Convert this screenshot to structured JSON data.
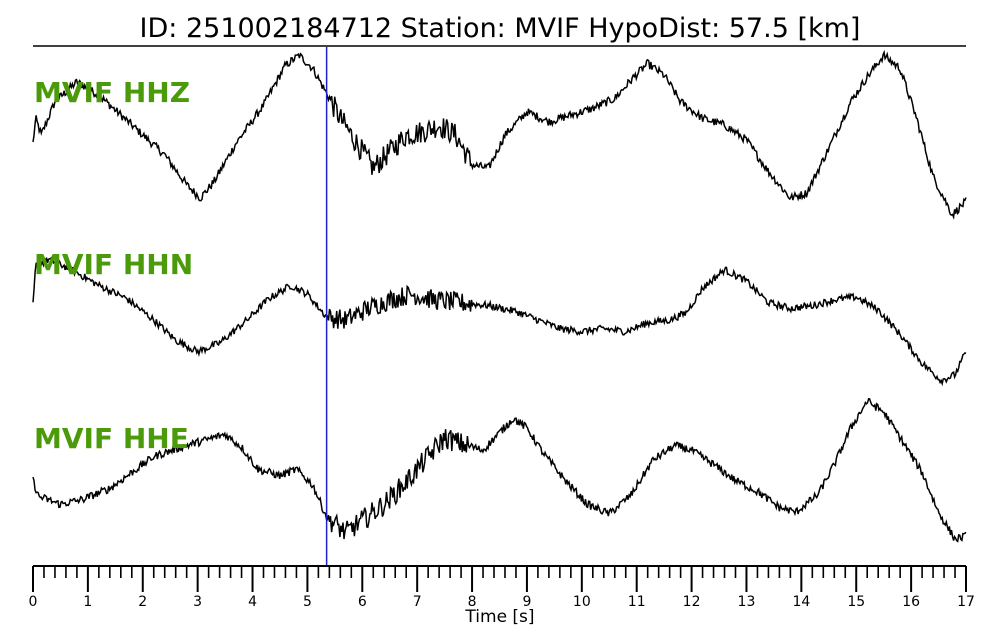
{
  "title": "ID: 251002184712   Station: MVIF   HypoDist:     57.5 [km]",
  "colors": {
    "label": "#4a9a0a",
    "pick": "#1f1fd0",
    "trace": "#000000"
  },
  "chart_data": {
    "type": "line",
    "xlabel": "Time [s]",
    "xlim": [
      0,
      17
    ],
    "x_major_ticks": [
      0,
      1,
      2,
      3,
      4,
      5,
      6,
      7,
      8,
      9,
      10,
      11,
      12,
      13,
      14,
      15,
      16,
      17
    ],
    "x_tick_labels": [
      "0",
      "1",
      "2",
      "3",
      "4",
      "5",
      "6",
      "7",
      "8",
      "9",
      "10",
      "11",
      "12",
      "13",
      "14",
      "15",
      "16",
      "17"
    ],
    "minor_tick_step": 0.2,
    "pick_time": 5.35,
    "grid": false,
    "series": [
      {
        "name": "MVIF HHZ",
        "points": [
          [
            0,
            0.45
          ],
          [
            0.05,
            0.6
          ],
          [
            0.15,
            0.5
          ],
          [
            0.4,
            0.7
          ],
          [
            0.8,
            0.82
          ],
          [
            1.2,
            0.74
          ],
          [
            1.6,
            0.62
          ],
          [
            2.0,
            0.5
          ],
          [
            2.4,
            0.38
          ],
          [
            2.8,
            0.2
          ],
          [
            3.05,
            0.12
          ],
          [
            3.3,
            0.22
          ],
          [
            3.7,
            0.45
          ],
          [
            4.2,
            0.68
          ],
          [
            4.6,
            0.92
          ],
          [
            4.85,
            0.98
          ],
          [
            5.1,
            0.9
          ],
          [
            5.35,
            0.75
          ],
          [
            5.6,
            0.6
          ],
          [
            5.9,
            0.45
          ],
          [
            6.2,
            0.3
          ],
          [
            6.5,
            0.4
          ],
          [
            6.8,
            0.5
          ],
          [
            7.1,
            0.52
          ],
          [
            7.4,
            0.56
          ],
          [
            7.7,
            0.5
          ],
          [
            8.0,
            0.32
          ],
          [
            8.3,
            0.3
          ],
          [
            8.6,
            0.5
          ],
          [
            9.0,
            0.64
          ],
          [
            9.4,
            0.58
          ],
          [
            9.8,
            0.62
          ],
          [
            10.2,
            0.66
          ],
          [
            10.6,
            0.72
          ],
          [
            10.95,
            0.85
          ],
          [
            11.2,
            0.93
          ],
          [
            11.5,
            0.86
          ],
          [
            11.8,
            0.7
          ],
          [
            12.2,
            0.6
          ],
          [
            12.6,
            0.56
          ],
          [
            13.0,
            0.47
          ],
          [
            13.4,
            0.28
          ],
          [
            13.8,
            0.12
          ],
          [
            14.1,
            0.15
          ],
          [
            14.5,
            0.42
          ],
          [
            14.9,
            0.7
          ],
          [
            15.2,
            0.85
          ],
          [
            15.5,
            0.98
          ],
          [
            15.8,
            0.9
          ],
          [
            16.1,
            0.6
          ],
          [
            16.4,
            0.25
          ],
          [
            16.75,
            0.02
          ],
          [
            17.0,
            0.1
          ]
        ]
      },
      {
        "name": "MVIF HHN",
        "points": [
          [
            0,
            0.6
          ],
          [
            0.05,
            0.88
          ],
          [
            0.3,
            0.92
          ],
          [
            0.7,
            0.85
          ],
          [
            1.2,
            0.74
          ],
          [
            1.7,
            0.65
          ],
          [
            2.2,
            0.5
          ],
          [
            2.6,
            0.36
          ],
          [
            3.0,
            0.28
          ],
          [
            3.4,
            0.34
          ],
          [
            3.9,
            0.5
          ],
          [
            4.3,
            0.65
          ],
          [
            4.7,
            0.74
          ],
          [
            5.0,
            0.68
          ],
          [
            5.35,
            0.52
          ],
          [
            5.7,
            0.5
          ],
          [
            6.1,
            0.58
          ],
          [
            6.5,
            0.64
          ],
          [
            6.9,
            0.68
          ],
          [
            7.3,
            0.64
          ],
          [
            7.8,
            0.62
          ],
          [
            8.3,
            0.6
          ],
          [
            8.8,
            0.56
          ],
          [
            9.2,
            0.5
          ],
          [
            9.6,
            0.44
          ],
          [
            10.0,
            0.42
          ],
          [
            10.4,
            0.44
          ],
          [
            10.8,
            0.42
          ],
          [
            11.2,
            0.48
          ],
          [
            11.6,
            0.5
          ],
          [
            11.9,
            0.55
          ],
          [
            12.2,
            0.72
          ],
          [
            12.6,
            0.85
          ],
          [
            13.0,
            0.77
          ],
          [
            13.4,
            0.62
          ],
          [
            13.8,
            0.58
          ],
          [
            14.2,
            0.6
          ],
          [
            14.6,
            0.64
          ],
          [
            15.0,
            0.66
          ],
          [
            15.4,
            0.57
          ],
          [
            15.8,
            0.4
          ],
          [
            16.2,
            0.2
          ],
          [
            16.55,
            0.08
          ],
          [
            16.8,
            0.12
          ],
          [
            17.0,
            0.28
          ]
        ]
      },
      {
        "name": "MVIF HHE",
        "points": [
          [
            0,
            0.45
          ],
          [
            0.1,
            0.35
          ],
          [
            0.5,
            0.3
          ],
          [
            0.9,
            0.33
          ],
          [
            1.4,
            0.4
          ],
          [
            1.8,
            0.5
          ],
          [
            2.2,
            0.6
          ],
          [
            2.7,
            0.66
          ],
          [
            3.1,
            0.7
          ],
          [
            3.5,
            0.74
          ],
          [
            3.8,
            0.66
          ],
          [
            4.1,
            0.52
          ],
          [
            4.5,
            0.48
          ],
          [
            4.8,
            0.52
          ],
          [
            5.1,
            0.42
          ],
          [
            5.35,
            0.22
          ],
          [
            5.7,
            0.12
          ],
          [
            6.0,
            0.2
          ],
          [
            6.4,
            0.3
          ],
          [
            6.8,
            0.44
          ],
          [
            7.2,
            0.6
          ],
          [
            7.5,
            0.72
          ],
          [
            7.8,
            0.68
          ],
          [
            8.2,
            0.64
          ],
          [
            8.5,
            0.75
          ],
          [
            8.75,
            0.84
          ],
          [
            9.0,
            0.78
          ],
          [
            9.3,
            0.62
          ],
          [
            9.7,
            0.45
          ],
          [
            10.1,
            0.3
          ],
          [
            10.5,
            0.24
          ],
          [
            10.9,
            0.36
          ],
          [
            11.3,
            0.58
          ],
          [
            11.7,
            0.67
          ],
          [
            12.0,
            0.64
          ],
          [
            12.4,
            0.55
          ],
          [
            12.8,
            0.45
          ],
          [
            13.2,
            0.38
          ],
          [
            13.6,
            0.28
          ],
          [
            13.9,
            0.25
          ],
          [
            14.3,
            0.36
          ],
          [
            14.6,
            0.55
          ],
          [
            14.9,
            0.78
          ],
          [
            15.2,
            0.95
          ],
          [
            15.5,
            0.88
          ],
          [
            15.8,
            0.72
          ],
          [
            16.2,
            0.5
          ],
          [
            16.5,
            0.25
          ],
          [
            16.8,
            0.08
          ],
          [
            17.0,
            0.1
          ]
        ]
      }
    ]
  }
}
